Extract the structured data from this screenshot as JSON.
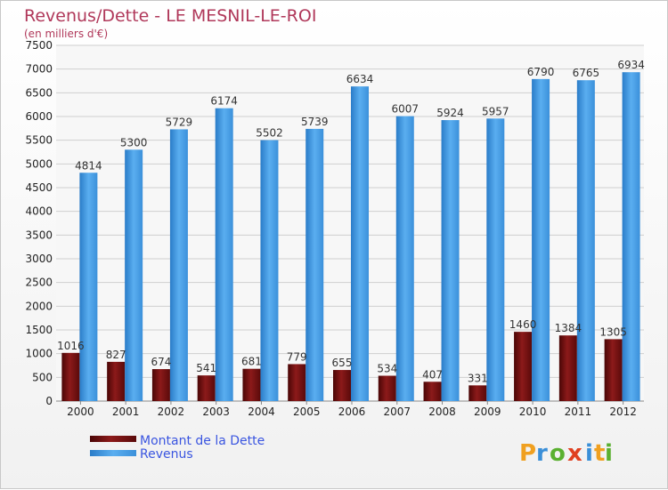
{
  "chart_data": {
    "type": "bar",
    "title": "Revenus/Dette - LE MESNIL-LE-ROI",
    "subtitle": "(en milliers d'€)",
    "categories": [
      "2000",
      "2001",
      "2002",
      "2003",
      "2004",
      "2005",
      "2006",
      "2007",
      "2008",
      "2009",
      "2010",
      "2011",
      "2012"
    ],
    "series": [
      {
        "name": "Montant de la Dette",
        "color": "#7a1010",
        "values": [
          1016,
          827,
          674,
          541,
          681,
          779,
          655,
          534,
          407,
          331,
          1460,
          1384,
          1305
        ]
      },
      {
        "name": "Revenus",
        "color": "#3d9ae6",
        "values": [
          4814,
          5300,
          5729,
          6174,
          5502,
          5739,
          6634,
          6007,
          5924,
          5957,
          6790,
          6765,
          6934
        ]
      }
    ],
    "y_ticks": [
      0,
      500,
      1000,
      1500,
      2000,
      2500,
      3000,
      3500,
      4000,
      4500,
      5000,
      5500,
      6000,
      6500,
      7000,
      7500
    ],
    "ylim": [
      0,
      7500
    ],
    "grid": true,
    "legend": "bottom-left",
    "watermark": "Proxiti"
  }
}
